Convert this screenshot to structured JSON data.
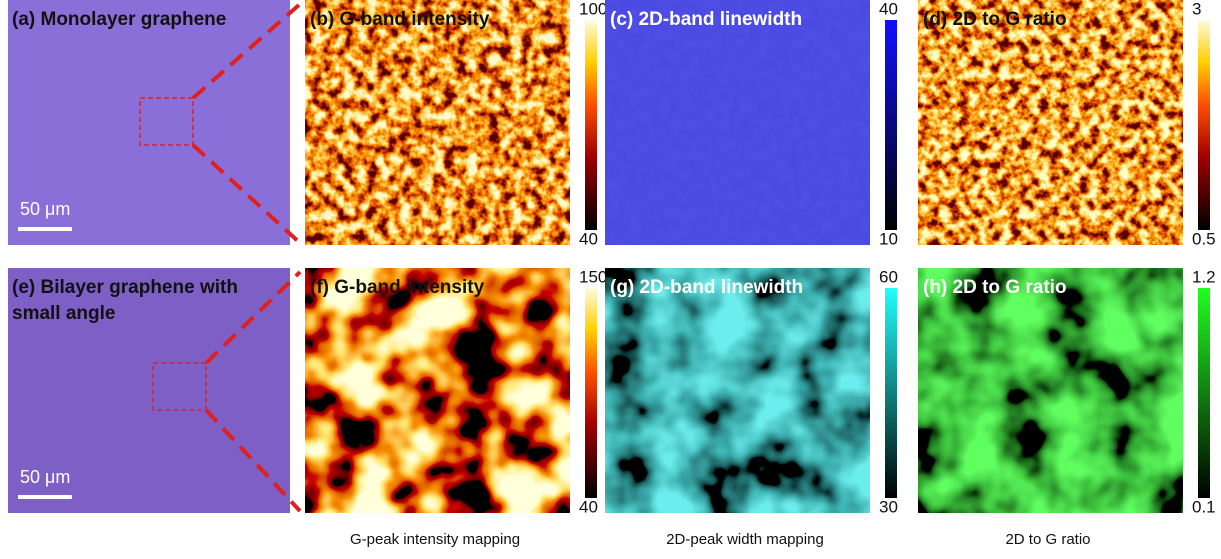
{
  "panels": [
    {
      "label": [
        "(a) Monolayer graphene"
      ],
      "scale_bar": "50 μm"
    },
    {
      "label": [
        "(b) G-band intensity"
      ],
      "colorbar": {
        "max": 100,
        "min": 40
      }
    },
    {
      "label": [
        "(c) 2D-band linewidth"
      ],
      "colorbar": {
        "max": 40,
        "min": 10
      }
    },
    {
      "label": [
        "(d) 2D to G ratio"
      ],
      "colorbar": {
        "max": 3,
        "min": 0.5
      }
    },
    {
      "label": [
        "(e) Bilayer graphene with",
        "small angle"
      ],
      "scale_bar": "50 μm"
    },
    {
      "label": [
        "(f) G-band intensity"
      ],
      "colorbar": {
        "max": 150,
        "min": 40
      }
    },
    {
      "label": [
        "(g) 2D-band linewidth"
      ],
      "colorbar": {
        "max": 60,
        "min": 30
      }
    },
    {
      "label": [
        "(h) 2D to G ratio"
      ],
      "colorbar": {
        "max": 1.2,
        "min": 0.1
      }
    }
  ],
  "captions": [
    "G-peak intensity mapping",
    "2D-peak width mapping",
    "2D to G ratio"
  ]
}
